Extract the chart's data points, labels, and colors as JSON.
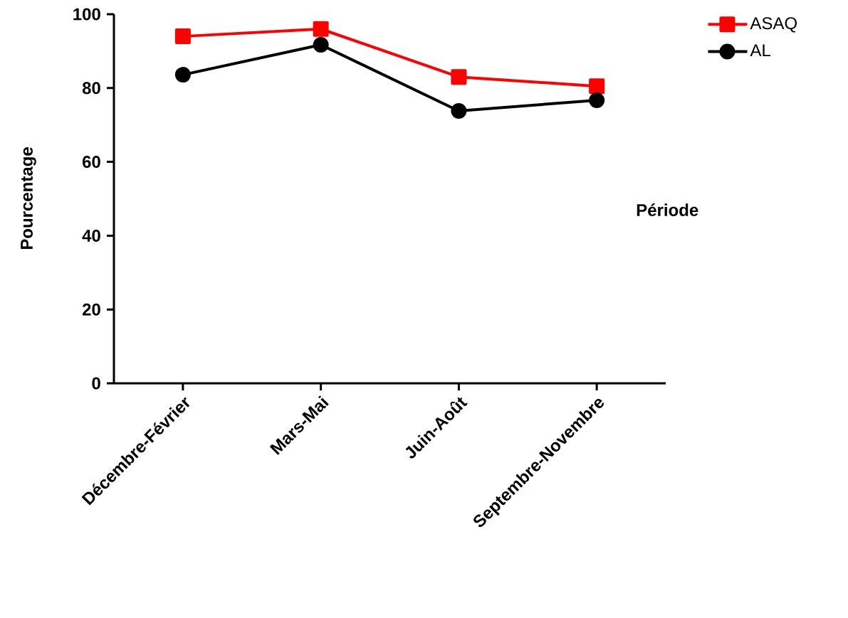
{
  "chart_data": {
    "type": "line",
    "xlabel": "Période",
    "ylabel": "Pourcentage",
    "categories": [
      "Décembre-Février",
      "Mars-Mai",
      "Juin-Août",
      "Septembre-Novembre"
    ],
    "series": [
      {
        "name": "ASAQ",
        "color": "#ff0000",
        "marker": "square",
        "values": [
          94,
          96,
          83,
          80.5
        ]
      },
      {
        "name": "AL",
        "color": "#000000",
        "marker": "circle",
        "values": [
          83.6,
          91.7,
          73.8,
          76.7
        ]
      }
    ],
    "ylim": [
      0,
      100
    ],
    "yticks": [
      0,
      20,
      40,
      60,
      80,
      100
    ],
    "grid": false,
    "legend": "top right",
    "line_style": "solid"
  }
}
